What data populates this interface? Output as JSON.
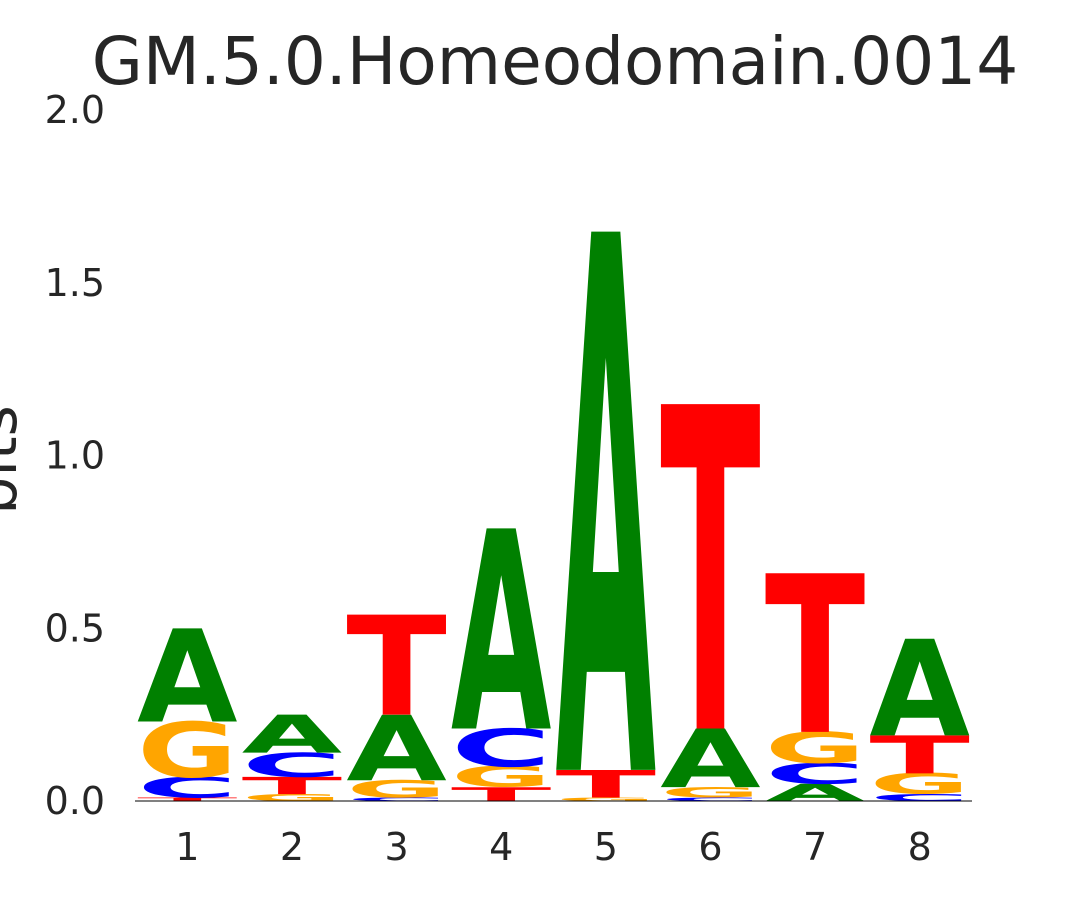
{
  "chart_data": {
    "type": "sequence-logo",
    "title": "GM.5.0.Homeodomain.0014",
    "ylabel": "bits",
    "xlabel": "",
    "ylim": [
      0,
      2.0
    ],
    "y_ticks": [
      "0.0",
      "0.5",
      "1.0",
      "1.5",
      "2.0"
    ],
    "y_tick_values": [
      0,
      0.5,
      1.0,
      1.5,
      2.0
    ],
    "positions": [
      "1",
      "2",
      "3",
      "4",
      "5",
      "6",
      "7",
      "8"
    ],
    "colors": {
      "A": "#008000",
      "C": "#0000ff",
      "G": "#ffa500",
      "T": "#ff0000"
    },
    "grid": false,
    "stacks": [
      [
        {
          "base": "T",
          "value": 0.01
        },
        {
          "base": "C",
          "value": 0.06
        },
        {
          "base": "G",
          "value": 0.16
        },
        {
          "base": "A",
          "value": 0.27
        }
      ],
      [
        {
          "base": "G",
          "value": 0.02
        },
        {
          "base": "T",
          "value": 0.05
        },
        {
          "base": "C",
          "value": 0.07
        },
        {
          "base": "A",
          "value": 0.11
        }
      ],
      [
        {
          "base": "C",
          "value": 0.01
        },
        {
          "base": "G",
          "value": 0.05
        },
        {
          "base": "A",
          "value": 0.19
        },
        {
          "base": "T",
          "value": 0.29
        }
      ],
      [
        {
          "base": "T",
          "value": 0.04
        },
        {
          "base": "G",
          "value": 0.06
        },
        {
          "base": "C",
          "value": 0.11
        },
        {
          "base": "A",
          "value": 0.58
        }
      ],
      [
        {
          "base": "G",
          "value": 0.01
        },
        {
          "base": "T",
          "value": 0.08
        },
        {
          "base": "A",
          "value": 1.56
        }
      ],
      [
        {
          "base": "C",
          "value": 0.01
        },
        {
          "base": "G",
          "value": 0.03
        },
        {
          "base": "A",
          "value": 0.17
        },
        {
          "base": "T",
          "value": 0.94
        }
      ],
      [
        {
          "base": "A",
          "value": 0.05
        },
        {
          "base": "C",
          "value": 0.06
        },
        {
          "base": "G",
          "value": 0.09
        },
        {
          "base": "T",
          "value": 0.46
        }
      ],
      [
        {
          "base": "C",
          "value": 0.02
        },
        {
          "base": "G",
          "value": 0.06
        },
        {
          "base": "T",
          "value": 0.11
        },
        {
          "base": "A",
          "value": 0.28
        }
      ]
    ]
  }
}
